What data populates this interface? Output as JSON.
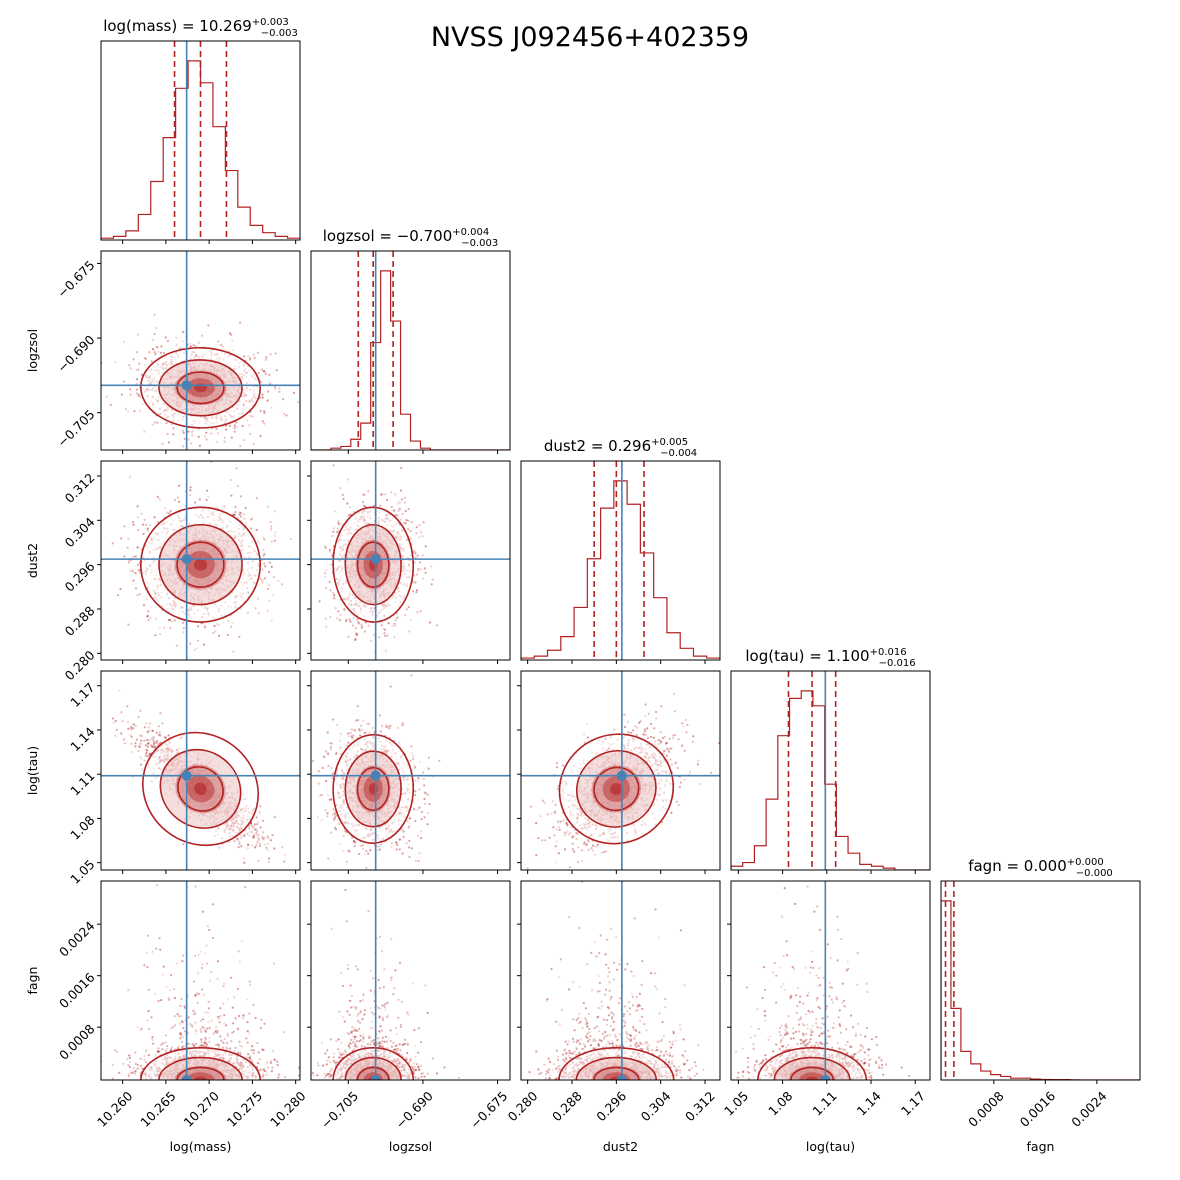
{
  "figure_title": "NVSS J092456+402359",
  "colors": {
    "posterior": "#b22222",
    "truth": "#4682b4",
    "background": "#ffffff"
  },
  "chart_data": {
    "type": "corner",
    "parameters": [
      {
        "name": "log(mass)",
        "axis_label": "log(mass)",
        "title_main": "log(mass) = 10.269",
        "title_plus": "+0.003",
        "title_minus": "−0.003",
        "range": [
          10.2575,
          10.2805
        ],
        "median": 10.269,
        "err_plus": 0.003,
        "err_minus": 0.003,
        "truth": 10.2674,
        "ticks": [
          10.26,
          10.265,
          10.27,
          10.275,
          10.28
        ],
        "tick_labels": [
          "10.260",
          "10.265",
          "10.270",
          "10.275",
          "10.280"
        ]
      },
      {
        "name": "logzsol",
        "axis_label": "logzsol",
        "title_main": "logzsol = −0.700",
        "title_plus": "+0.004",
        "title_minus": "−0.003",
        "range": [
          -0.7125,
          -0.6725
        ],
        "median": -0.7,
        "err_plus": 0.004,
        "err_minus": 0.003,
        "truth": -0.6995,
        "ticks": [
          -0.705,
          -0.69,
          -0.675
        ],
        "tick_labels": [
          "−0.705",
          "−0.690",
          "−0.675"
        ]
      },
      {
        "name": "dust2",
        "axis_label": "dust2",
        "title_main": "dust2 = 0.296",
        "title_plus": "+0.005",
        "title_minus": "−0.004",
        "range": [
          0.2788,
          0.3147
        ],
        "median": 0.296,
        "err_plus": 0.005,
        "err_minus": 0.004,
        "truth": 0.297,
        "ticks": [
          0.28,
          0.288,
          0.296,
          0.304,
          0.312
        ],
        "tick_labels": [
          "0.280",
          "0.288",
          "0.296",
          "0.304",
          "0.312"
        ]
      },
      {
        "name": "log(tau)",
        "axis_label": "log(tau)",
        "title_main": "log(tau) = 1.100",
        "title_plus": "+0.016",
        "title_minus": "−0.016",
        "range": [
          1.045,
          1.18
        ],
        "median": 1.1,
        "err_plus": 0.016,
        "err_minus": 0.016,
        "truth": 1.109,
        "ticks": [
          1.05,
          1.08,
          1.11,
          1.14,
          1.17
        ],
        "tick_labels": [
          "1.05",
          "1.08",
          "1.11",
          "1.14",
          "1.17"
        ]
      },
      {
        "name": "fagn",
        "axis_label": "fagn",
        "title_main": "fagn = 0.000",
        "title_plus": "+0.000",
        "title_minus": "−0.000",
        "range": [
          -2e-05,
          0.00307
        ],
        "median": 0.0,
        "err_plus": 0.0,
        "err_minus": 0.0,
        "truth": 0.0,
        "ticks": [
          0.0008,
          0.0016,
          0.0024
        ],
        "tick_labels": [
          "0.0008",
          "0.0016",
          "0.0024"
        ]
      }
    ],
    "histograms": [
      {
        "param": "log(mass)",
        "counts": [
          1,
          2,
          5,
          14,
          32,
          56,
          83,
          98,
          86,
          62,
          38,
          18,
          8,
          4,
          2,
          1
        ]
      },
      {
        "param": "logzsol",
        "counts": [
          0,
          0,
          1,
          2,
          6,
          15,
          60,
          100,
          72,
          20,
          5,
          1,
          0,
          0,
          0,
          0,
          0,
          0,
          0,
          0
        ]
      },
      {
        "param": "dust2",
        "counts": [
          1,
          2,
          5,
          12,
          27,
          52,
          78,
          92,
          80,
          55,
          32,
          14,
          6,
          2,
          1
        ]
      },
      {
        "param": "log(tau)",
        "counts": [
          2,
          4,
          13,
          38,
          72,
          92,
          96,
          88,
          46,
          18,
          9,
          3,
          2,
          1,
          0,
          0,
          0
        ]
      },
      {
        "param": "fagn",
        "counts": [
          100,
          40,
          16,
          9,
          5,
          3,
          2,
          1,
          1,
          0.5,
          0.3,
          0.2,
          0.2,
          0.1,
          0,
          0,
          0,
          0,
          0,
          0
        ]
      }
    ],
    "correlations": {
      "logzsol|log(mass)": -0.1,
      "dust2|log(mass)": 0.05,
      "dust2|logzsol": 0.05,
      "log(tau)|log(mass)": -0.85,
      "log(tau)|logzsol": -0.05,
      "log(tau)|dust2": 0.45,
      "fagn|log(mass)": 0.0,
      "fagn|logzsol": 0.0,
      "fagn|dust2": 0.0,
      "fagn|log(tau)": 0.0
    }
  }
}
